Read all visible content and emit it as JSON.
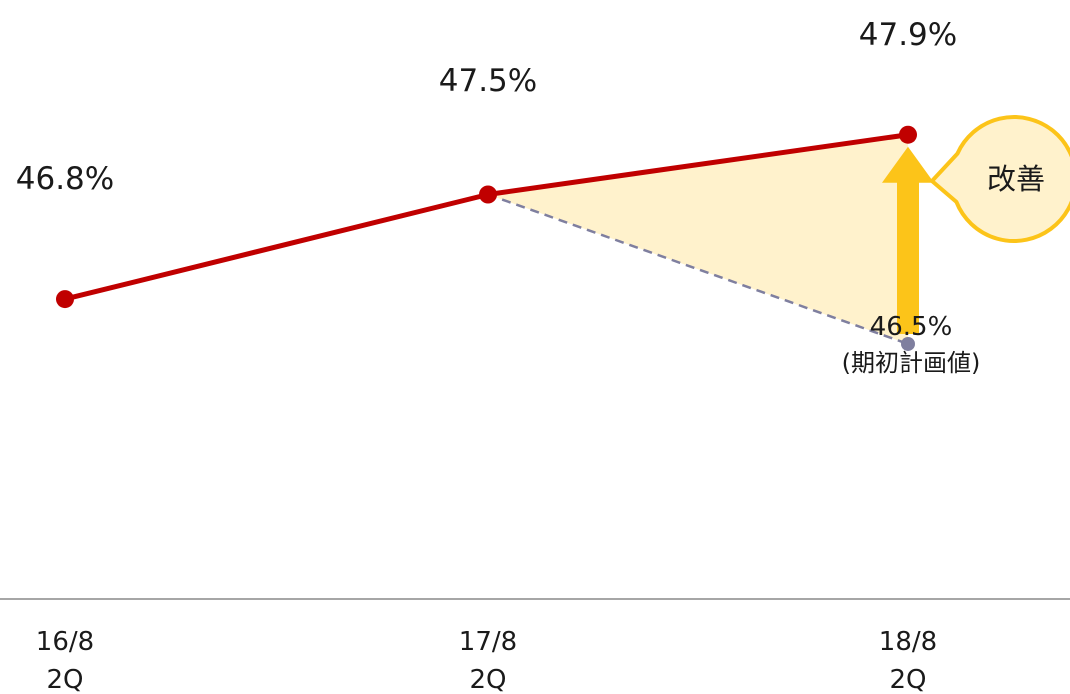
{
  "chart_data": {
    "type": "line",
    "categories": [
      {
        "period": "16/8",
        "quarter": "2Q"
      },
      {
        "period": "17/8",
        "quarter": "2Q"
      },
      {
        "period": "18/8",
        "quarter": "2Q"
      }
    ],
    "series": [
      {
        "values": [
          46.8,
          47.5,
          47.9
        ],
        "labels": [
          "46.8%",
          "47.5%",
          "47.9%"
        ],
        "color": "#c00000"
      },
      {
        "values": [
          null,
          47.5,
          46.5
        ],
        "labels": [
          null,
          null,
          "46.5%"
        ],
        "note": "(期初計画値)",
        "color": "#7f7f9f",
        "dashed": true
      }
    ],
    "annotation": {
      "text": "改善",
      "arrow_color": "#fcc419",
      "fill_color": "#fff2cc"
    },
    "ylim": [
      44.8,
      48.4
    ],
    "grid": false,
    "title": "",
    "xlabel": "",
    "ylabel": ""
  }
}
